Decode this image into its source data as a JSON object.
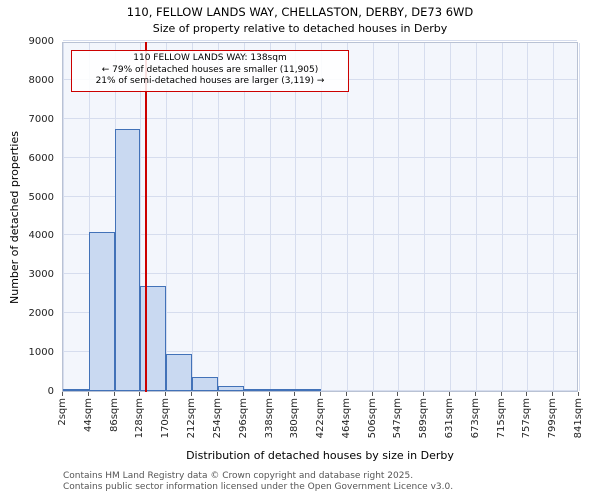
{
  "chart_data": {
    "type": "bar",
    "title": "110, FELLOW LANDS WAY, CHELLASTON, DERBY, DE73 6WD",
    "subtitle": "Size of property relative to detached houses in Derby",
    "xlabel": "Distribution of detached houses by size in Derby",
    "ylabel": "Number of detached properties",
    "ylim": [
      0,
      9000
    ],
    "y_ticks": [
      0,
      1000,
      2000,
      3000,
      4000,
      5000,
      6000,
      7000,
      8000,
      9000
    ],
    "x_tick_values": [
      2,
      44,
      86,
      128,
      170,
      212,
      254,
      296,
      338,
      380,
      422,
      464,
      506,
      547,
      589,
      631,
      673,
      715,
      757,
      799,
      841
    ],
    "x_tick_labels": [
      "2sqm",
      "44sqm",
      "86sqm",
      "128sqm",
      "170sqm",
      "212sqm",
      "254sqm",
      "296sqm",
      "338sqm",
      "380sqm",
      "422sqm",
      "464sqm",
      "506sqm",
      "547sqm",
      "589sqm",
      "631sqm",
      "673sqm",
      "715sqm",
      "757sqm",
      "799sqm",
      "841sqm"
    ],
    "bins": {
      "start": 2,
      "width": 42,
      "counts": [
        40,
        4100,
        6750,
        2700,
        950,
        350,
        120,
        60,
        40,
        30,
        0,
        0,
        0,
        0,
        0,
        0,
        0,
        0,
        0,
        0
      ]
    },
    "marker": {
      "value": 138,
      "label": "138sqm",
      "color": "#cc0000"
    },
    "grid": true,
    "colors": {
      "bar_fill": "#c9d9f1",
      "bar_border": "#4272b8",
      "grid": "#d6ddee",
      "plot_bg": "#f3f6fc",
      "marker": "#cc0000",
      "annotation_border": "#cc0000"
    }
  },
  "annotation": {
    "line1": "110 FELLOW LANDS WAY: 138sqm",
    "line2": "← 79% of detached houses are smaller (11,905)",
    "line3": "21% of semi-detached houses are larger (3,119) →"
  },
  "footer": {
    "line1": "Contains HM Land Registry data © Crown copyright and database right 2025.",
    "line2": "Contains public sector information licensed under the Open Government Licence v3.0."
  }
}
